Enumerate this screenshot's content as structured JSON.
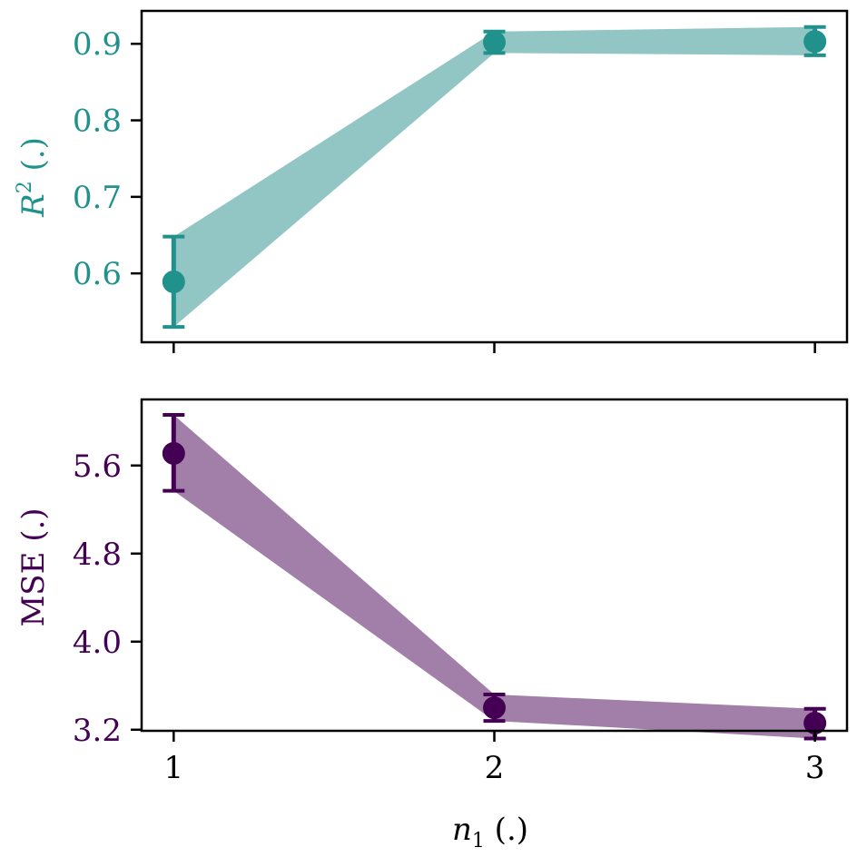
{
  "chart_data": [
    {
      "type": "line",
      "x": [
        1,
        2,
        3
      ],
      "series": [
        {
          "values": [
            0.589,
            0.902,
            0.903
          ],
          "lower": [
            0.53,
            0.888,
            0.885
          ],
          "upper": [
            0.648,
            0.916,
            0.922
          ]
        }
      ],
      "ylabel_main": "R",
      "ylabel_sup": "2",
      "ylabel_unit": " (.)",
      "yticks": [
        0.6,
        0.7,
        0.8,
        0.9
      ],
      "ytick_labels": [
        "0.6",
        "0.7",
        "0.8",
        "0.9"
      ],
      "ylim": [
        0.51,
        0.943
      ],
      "xlim": [
        0.9,
        3.1
      ],
      "color": "#21918c",
      "band_color": "#91c6c4"
    },
    {
      "type": "line",
      "x": [
        1,
        2,
        3
      ],
      "series": [
        {
          "values": [
            5.71,
            3.4,
            3.26
          ],
          "lower": [
            5.37,
            3.28,
            3.12
          ],
          "upper": [
            6.06,
            3.52,
            3.39
          ]
        }
      ],
      "ylabel": "MSE (.)",
      "yticks": [
        3.2,
        4.0,
        4.8,
        5.6
      ],
      "ytick_labels": [
        "3.2",
        "4.0",
        "4.8",
        "5.6"
      ],
      "ylim": [
        3.19,
        6.2
      ],
      "xlim": [
        0.9,
        3.1
      ],
      "xticks": [
        1,
        2,
        3
      ],
      "xtick_labels": [
        "1",
        "2",
        "3"
      ],
      "xlabel_main": "n",
      "xlabel_sub": "1",
      "xlabel_unit": " (.)",
      "color": "#440154",
      "band_color": "#a27fa9"
    }
  ]
}
